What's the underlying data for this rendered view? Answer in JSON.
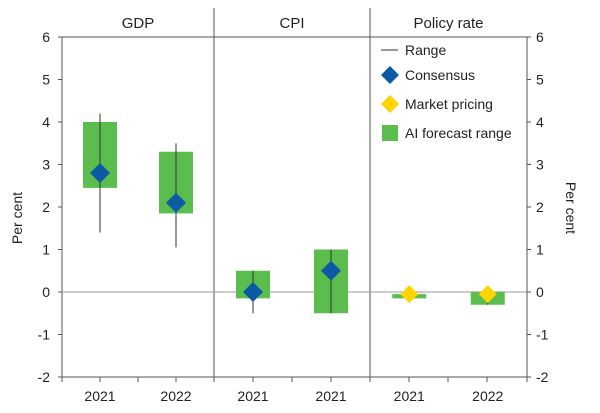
{
  "chart_data": {
    "type": "range-forecast",
    "ylim": [
      -2,
      6
    ],
    "yticks": [
      "-2",
      "-1",
      "0",
      "1",
      "2",
      "3",
      "4",
      "5",
      "6"
    ],
    "ylabel_left": "Per cent",
    "ylabel_right": "Per cent",
    "legend": {
      "range": "Range",
      "consensus": "Consensus",
      "market": "Market pricing",
      "ai": "AI forecast range"
    },
    "colors": {
      "ai": "#5bbd4e",
      "consensus": "#0b5aa3",
      "market": "#ffd400",
      "range": "#333333",
      "zero_line": "#999999",
      "axis": "#555555"
    },
    "panels": [
      {
        "title": "GDP",
        "points": [
          {
            "label": "2021",
            "range": [
              1.4,
              4.2
            ],
            "ai": [
              2.45,
              4.0
            ],
            "consensus": 2.8,
            "market": null
          },
          {
            "label": "2022",
            "range": [
              1.05,
              3.5
            ],
            "ai": [
              1.85,
              3.3
            ],
            "consensus": 2.1,
            "market": null
          }
        ]
      },
      {
        "title": "CPI",
        "points": [
          {
            "label": "2021",
            "range": [
              -0.5,
              0.5
            ],
            "ai": [
              -0.15,
              0.5
            ],
            "consensus": 0.0,
            "market": null
          },
          {
            "label": "2021",
            "range": [
              -0.5,
              1.0
            ],
            "ai": [
              -0.5,
              1.0
            ],
            "consensus": 0.5,
            "market": null
          }
        ]
      },
      {
        "title": "Policy rate",
        "points": [
          {
            "label": "2021",
            "range": [
              -0.1,
              0.0
            ],
            "ai": [
              -0.15,
              -0.05
            ],
            "consensus": null,
            "market": -0.05
          },
          {
            "label": "2022",
            "range": [
              -0.3,
              0.0
            ],
            "ai": [
              -0.3,
              0.0
            ],
            "consensus": null,
            "market": -0.05
          }
        ]
      }
    ]
  }
}
